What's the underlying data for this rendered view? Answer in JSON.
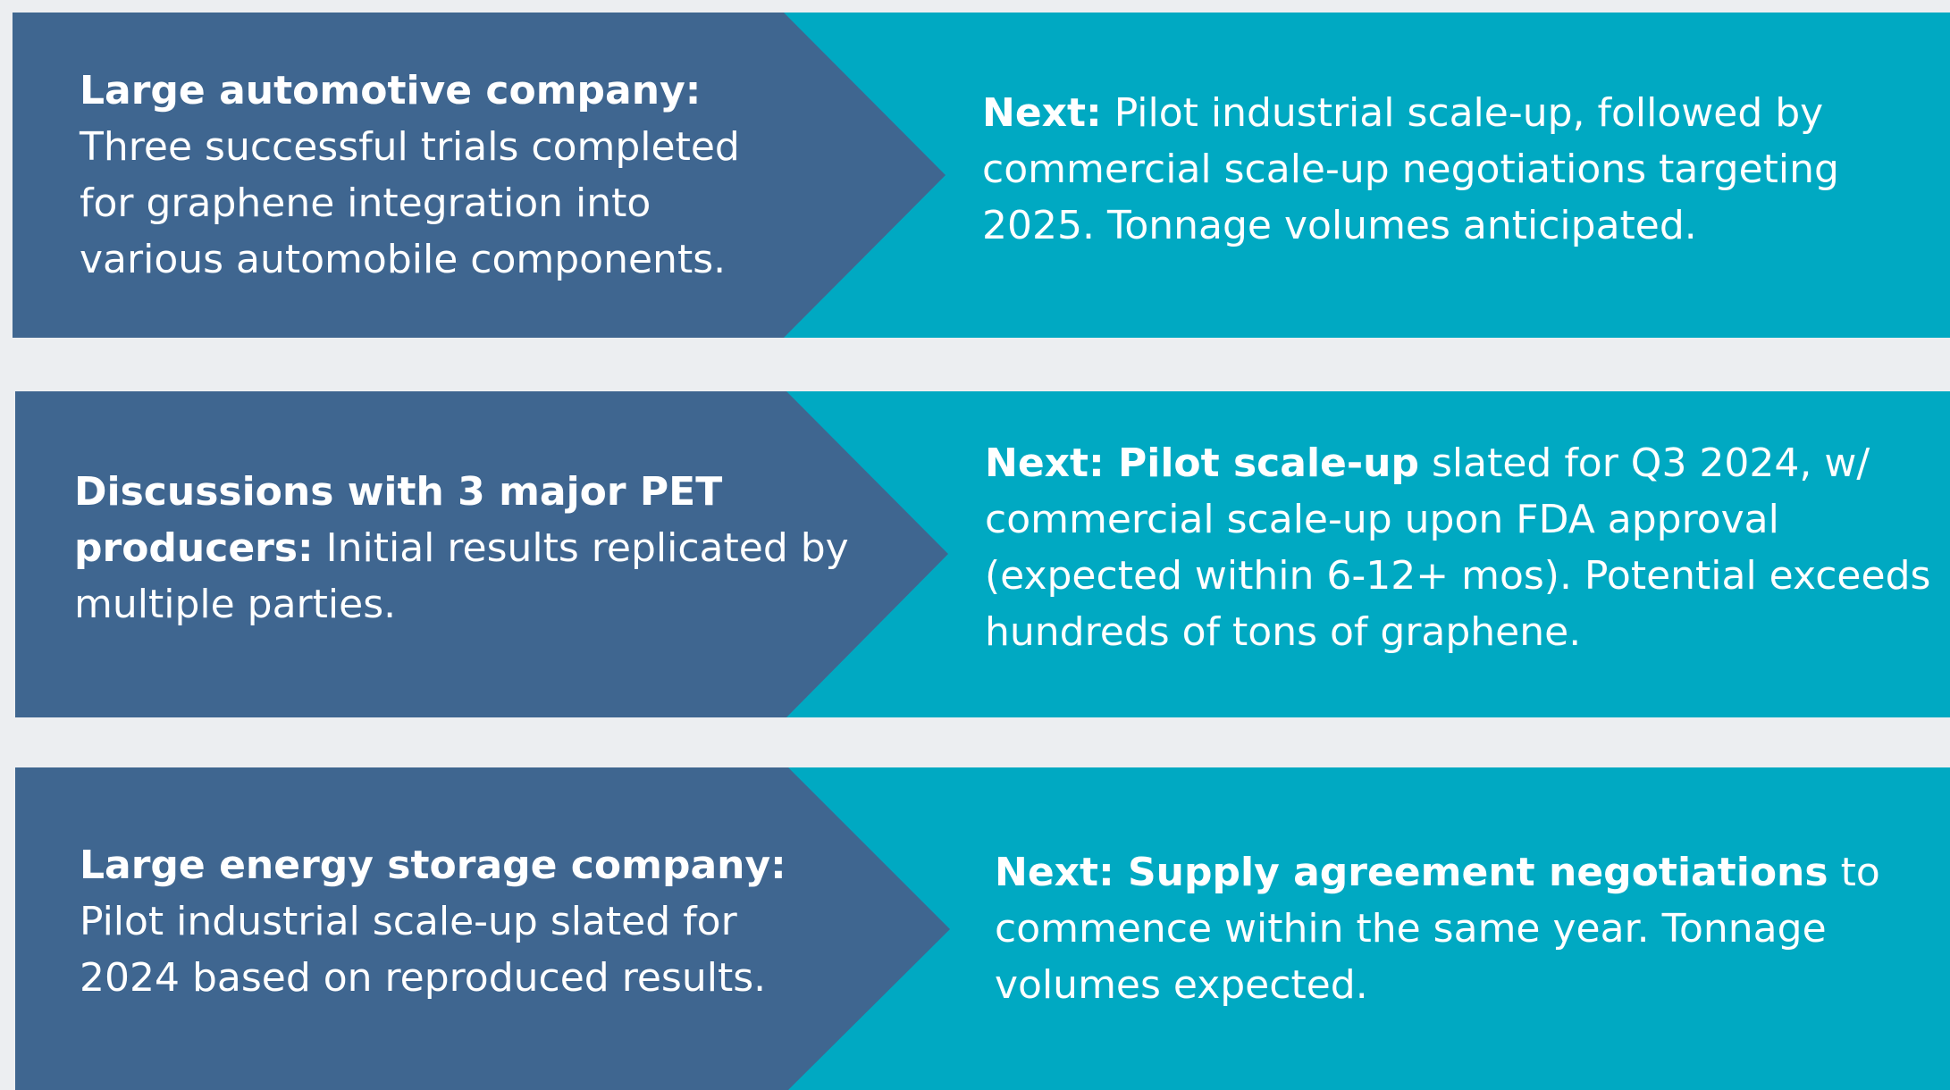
{
  "rows": [
    {
      "left": {
        "bold": "Large automotive company:",
        "text": "Three successful trials completed for graphene integration into various automobile components."
      },
      "right": {
        "bold": "Next:",
        "text": "Pilot industrial scale-up, followed by commercial scale-up negotiations targeting 2025. Tonnage volumes anticipated."
      }
    },
    {
      "left": {
        "bold": "Discussions with 3 major PET producers:",
        "text": "Initial results replicated by multiple parties."
      },
      "right": {
        "bold": "Next: Pilot scale-up",
        "text": "slated for Q3 2024, w/ commercial scale-up upon FDA approval (expected within 6-12+ mos). Potential exceeds hundreds of tons of graphene."
      }
    },
    {
      "left": {
        "bold": "Large energy storage company:",
        "text": "Pilot industrial scale-up slated for 2024 based on reproduced results."
      },
      "right": {
        "bold": "Next: Supply agreement negotiations",
        "text": "to commence within the same year. Tonnage volumes expected."
      }
    }
  ]
}
